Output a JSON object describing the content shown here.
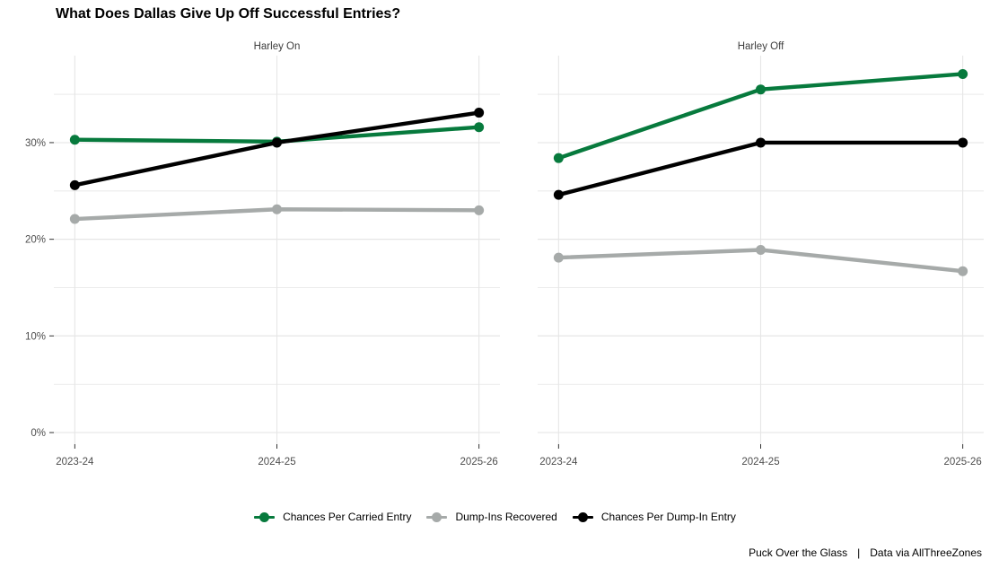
{
  "title": "What Does Dallas Give Up Off Successful Entries?",
  "colors": {
    "green": "#077a3d",
    "gray": "#a6aaa9",
    "black": "#000000",
    "grid": "#e6e6e6",
    "axis_text": "#4d4d4d",
    "strip_text": "#3d3d3d",
    "tick_mark": "#333333"
  },
  "legend": [
    {
      "label": "Chances Per Carried Entry",
      "color": "#077a3d"
    },
    {
      "label": "Dump-Ins Recovered",
      "color": "#a6aaa9"
    },
    {
      "label": "Chances Per Dump-In Entry",
      "color": "#000000"
    }
  ],
  "footer": {
    "left": "Puck Over the Glass",
    "divider": "|",
    "right": "Data via AllThreeZones"
  },
  "chart_data": {
    "type": "line",
    "title": "What Does Dallas Give Up Off Successful Entries?",
    "xlabel": "",
    "ylabel": "",
    "ylim": [
      -1.2,
      39.0
    ],
    "yticks": [
      0,
      10,
      20,
      30
    ],
    "ytick_labels": [
      "0%",
      "10%",
      "20%",
      "30%"
    ],
    "grid_minor_step": 5,
    "grid_max": 35,
    "legend_position": "bottom-center",
    "facets": [
      {
        "label": "Harley On",
        "categories": [
          "2023-24",
          "2024-25",
          "2025-26"
        ],
        "series": [
          {
            "name": "Chances Per Carried Entry",
            "color": "#077a3d",
            "values": [
              30.3,
              30.1,
              31.6
            ]
          },
          {
            "name": "Dump-Ins Recovered",
            "color": "#a6aaa9",
            "values": [
              22.1,
              23.1,
              23.0
            ]
          },
          {
            "name": "Chances Per Dump-In Entry",
            "color": "#000000",
            "values": [
              25.6,
              30.0,
              33.1
            ]
          }
        ]
      },
      {
        "label": "Harley Off",
        "categories": [
          "2023-24",
          "2024-25",
          "2025-26"
        ],
        "series": [
          {
            "name": "Chances Per Carried Entry",
            "color": "#077a3d",
            "values": [
              28.4,
              35.5,
              37.1
            ]
          },
          {
            "name": "Dump-Ins Recovered",
            "color": "#a6aaa9",
            "values": [
              18.1,
              18.9,
              16.7
            ]
          },
          {
            "name": "Chances Per Dump-In Entry",
            "color": "#000000",
            "values": [
              24.6,
              30.0,
              30.0
            ]
          }
        ]
      }
    ]
  }
}
